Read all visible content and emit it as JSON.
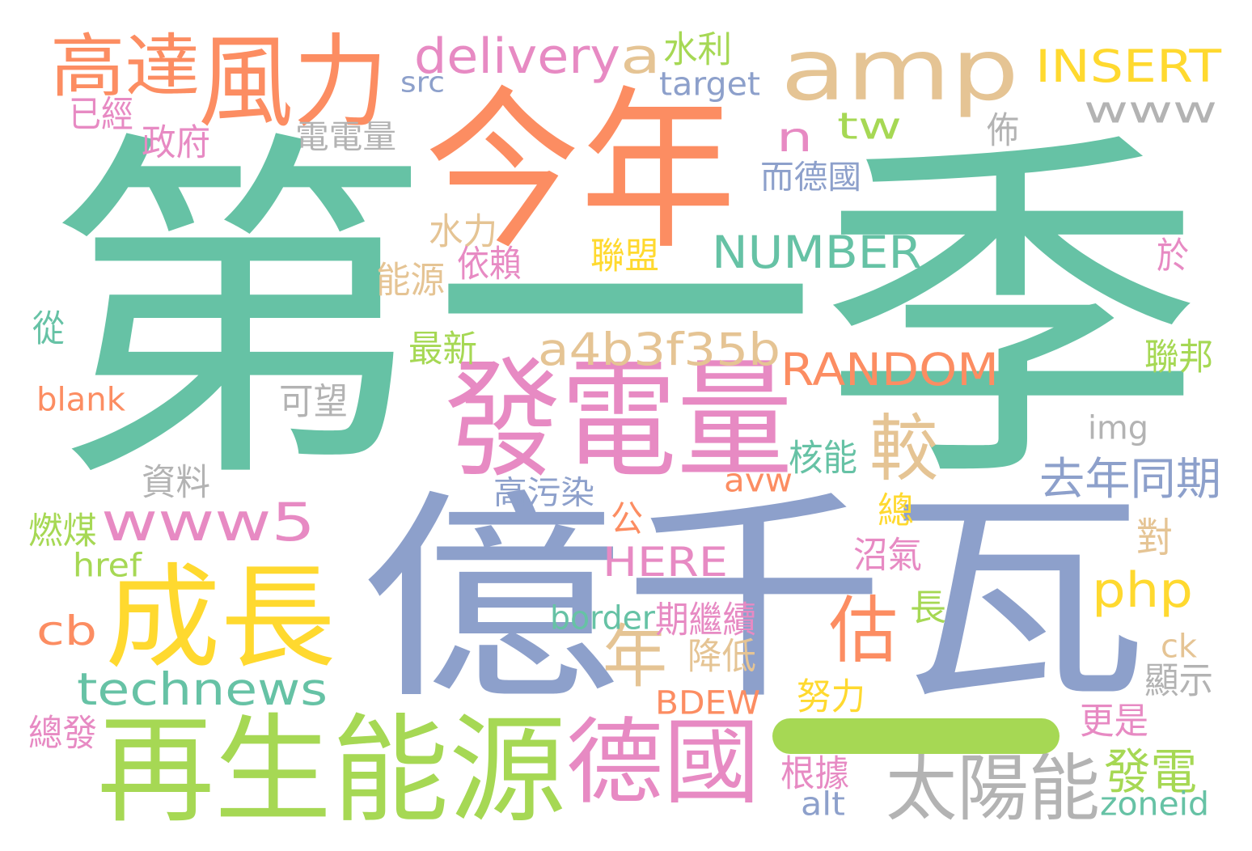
{
  "palette": {
    "teal": "#66C2A5",
    "orange": "#FC8D62",
    "blue": "#8DA0CB",
    "pink": "#E78AC3",
    "green": "#A6D854",
    "yellow": "#FFD92F",
    "tan": "#E5C494",
    "gray": "#B3B3B3"
  },
  "words": [
    {
      "text": "第一季",
      "color": "teal"
    },
    {
      "text": "億千瓦",
      "color": "blue"
    },
    {
      "text": "今年",
      "color": "orange"
    },
    {
      "text": "amp",
      "color": "tan"
    },
    {
      "text": "發電量",
      "color": "pink"
    },
    {
      "text": "再生能源",
      "color": "green"
    },
    {
      "text": "成長",
      "color": "yellow"
    },
    {
      "text": "風力",
      "color": "orange"
    },
    {
      "text": "高達",
      "color": "orange"
    },
    {
      "text": "德國",
      "color": "pink"
    },
    {
      "text": "太陽能",
      "color": "gray"
    },
    {
      "text": "delivery",
      "color": "pink"
    },
    {
      "text": "a",
      "color": "tan"
    },
    {
      "text": "INSERT",
      "color": "yellow"
    },
    {
      "text": "www",
      "color": "gray"
    },
    {
      "text": "tw",
      "color": "green"
    },
    {
      "text": "n",
      "color": "pink"
    },
    {
      "text": "NUMBER",
      "color": "teal"
    },
    {
      "text": "a4b3f35b",
      "color": "tan"
    },
    {
      "text": "RANDOM",
      "color": "orange"
    },
    {
      "text": "www5",
      "color": "pink"
    },
    {
      "text": "較",
      "color": "tan"
    },
    {
      "text": "去年同期",
      "color": "blue"
    },
    {
      "text": "php",
      "color": "yellow"
    },
    {
      "text": "年",
      "color": "tan"
    },
    {
      "text": "估",
      "color": "orange"
    },
    {
      "text": "technews",
      "color": "teal"
    },
    {
      "text": "cb",
      "color": "orange"
    },
    {
      "text": "HERE",
      "color": "pink"
    },
    {
      "text": "發電",
      "color": "green"
    },
    {
      "text": "水利",
      "color": "green"
    },
    {
      "text": "src",
      "color": "blue"
    },
    {
      "text": "target",
      "color": "blue"
    },
    {
      "text": "已經",
      "color": "pink"
    },
    {
      "text": "政府",
      "color": "pink"
    },
    {
      "text": "電電量",
      "color": "gray"
    },
    {
      "text": "佈",
      "color": "gray"
    },
    {
      "text": "而德國",
      "color": "blue"
    },
    {
      "text": "水力",
      "color": "tan"
    },
    {
      "text": "依賴",
      "color": "pink"
    },
    {
      "text": "聯盟",
      "color": "yellow"
    },
    {
      "text": "能源",
      "color": "tan"
    },
    {
      "text": "於",
      "color": "pink"
    },
    {
      "text": "從",
      "color": "teal"
    },
    {
      "text": "最新",
      "color": "green"
    },
    {
      "text": "聯邦",
      "color": "green"
    },
    {
      "text": "blank",
      "color": "orange"
    },
    {
      "text": "可望",
      "color": "gray"
    },
    {
      "text": "img",
      "color": "gray"
    },
    {
      "text": "核能",
      "color": "teal"
    },
    {
      "text": "avw",
      "color": "orange"
    },
    {
      "text": "資料",
      "color": "gray"
    },
    {
      "text": "高污染",
      "color": "blue"
    },
    {
      "text": "總",
      "color": "yellow"
    },
    {
      "text": "燃煤",
      "color": "green"
    },
    {
      "text": "公",
      "color": "orange"
    },
    {
      "text": "對",
      "color": "tan"
    },
    {
      "text": "href",
      "color": "green"
    },
    {
      "text": "沼氣",
      "color": "pink"
    },
    {
      "text": "border",
      "color": "teal"
    },
    {
      "text": "期繼續",
      "color": "pink"
    },
    {
      "text": "長",
      "color": "green"
    },
    {
      "text": "ck",
      "color": "tan"
    },
    {
      "text": "降低",
      "color": "tan"
    },
    {
      "text": "顯示",
      "color": "gray"
    },
    {
      "text": "BDEW",
      "color": "orange"
    },
    {
      "text": "努力",
      "color": "yellow"
    },
    {
      "text": "更是",
      "color": "pink"
    },
    {
      "text": "總發",
      "color": "pink"
    },
    {
      "text": "根據",
      "color": "pink"
    },
    {
      "text": "alt",
      "color": "blue"
    },
    {
      "text": "zoneid",
      "color": "teal"
    },
    {
      "text": "一",
      "color": "green"
    }
  ]
}
